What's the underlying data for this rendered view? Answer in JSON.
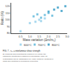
{
  "chart_data": {
    "type": "scatter",
    "xlabel": "Mass variation (Δm/m₀)",
    "ylabel": "Ratio (%)",
    "xlim": [
      0,
      3.0
    ],
    "ylim": [
      80,
      125
    ],
    "xticks": [
      0.5,
      {
        "value": 1.0,
        "label": "1.0"
      },
      1.5,
      {
        "value": 2.0,
        "label": "2.0"
      },
      2.5,
      {
        "value": 3.0,
        "label": "3.0"
      }
    ],
    "yticks": [
      80,
      90,
      100,
      110,
      120
    ],
    "grid": false,
    "legend": "bottom",
    "series": [
      {
        "name": "600°C",
        "color": "#a8d8ee",
        "marker": "square",
        "x": [
          0.5,
          1.0,
          1.3,
          1.5,
          1.6,
          1.8
        ],
        "values": [
          83,
          95,
          97,
          100,
          98,
          102
        ]
      },
      {
        "name": "700°C",
        "color": "#7bc4e0",
        "marker": "square",
        "x": [
          1.2,
          1.4,
          1.6,
          1.8,
          2.0,
          2.2
        ],
        "values": [
          105,
          108,
          103,
          107,
          110,
          106
        ]
      },
      {
        "name": "800°C",
        "color": "#5aaed0",
        "marker": "square",
        "x": [
          2.0,
          2.3,
          2.5,
          2.7,
          2.9
        ],
        "values": [
          112,
          115,
          118,
          113,
          120
        ]
      }
    ],
    "annotations": [
      "FIG. 7 - τₜ₀ = interlaminar shear strength",
      "By modeling and predicting the behavior of a CFRP, the\nparametric monitoring of samples is increasingly used, as\nrelationships can be established very easily between variations in\nmass and variations in mechanical properties."
    ]
  }
}
